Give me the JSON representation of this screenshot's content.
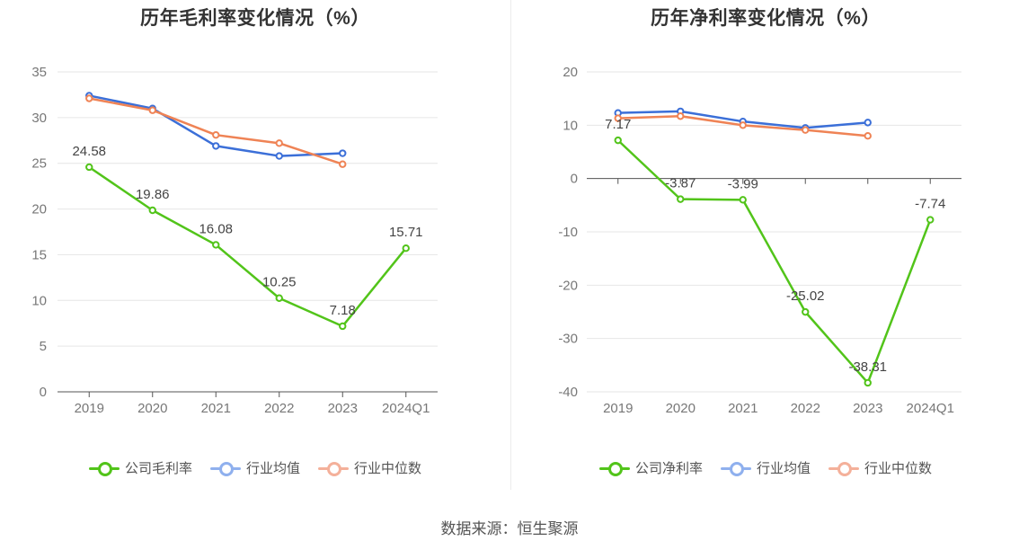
{
  "charts": [
    {
      "title": "历年毛利率变化情况（%）",
      "chart_data": {
        "type": "line",
        "categories": [
          "2019",
          "2020",
          "2021",
          "2022",
          "2023",
          "2024Q1"
        ],
        "ylim": [
          0,
          35
        ],
        "yticks": [
          0,
          5,
          10,
          15,
          20,
          25,
          30,
          35
        ],
        "grid": true,
        "legend": "bottom",
        "series": [
          {
            "name": "公司毛利率",
            "color": "#52c41a",
            "labels": true,
            "values": [
              24.58,
              19.86,
              16.08,
              10.25,
              7.18,
              15.71
            ]
          },
          {
            "name": "行业均值",
            "color": "#3b6fd8",
            "labels": false,
            "values": [
              32.4,
              31.0,
              26.9,
              25.8,
              26.1,
              null
            ]
          },
          {
            "name": "行业中位数",
            "color": "#ef8355",
            "labels": false,
            "values": [
              32.1,
              30.8,
              28.1,
              27.2,
              24.9,
              null
            ]
          }
        ]
      }
    },
    {
      "title": "历年净利率变化情况（%）",
      "chart_data": {
        "type": "line",
        "categories": [
          "2019",
          "2020",
          "2021",
          "2022",
          "2023",
          "2024Q1"
        ],
        "ylim": [
          -40,
          20
        ],
        "yticks": [
          -40,
          -30,
          -20,
          -10,
          0,
          10,
          20
        ],
        "grid": true,
        "legend": "bottom",
        "series": [
          {
            "name": "公司净利率",
            "color": "#52c41a",
            "labels": true,
            "values": [
              7.17,
              -3.87,
              -3.99,
              -25.02,
              -38.31,
              -7.74
            ]
          },
          {
            "name": "行业均值",
            "color": "#3b6fd8",
            "labels": false,
            "values": [
              12.3,
              12.6,
              10.7,
              9.5,
              10.5,
              null
            ]
          },
          {
            "name": "行业中位数",
            "color": "#ef8355",
            "labels": false,
            "values": [
              11.3,
              11.7,
              10.0,
              9.1,
              8.0,
              null
            ]
          }
        ]
      }
    }
  ],
  "legend_colors": {
    "公司": "#52c41a",
    "行业均值": "#8fb0ee",
    "行业中位数": "#f4b09a"
  },
  "source": "数据来源：恒生聚源"
}
